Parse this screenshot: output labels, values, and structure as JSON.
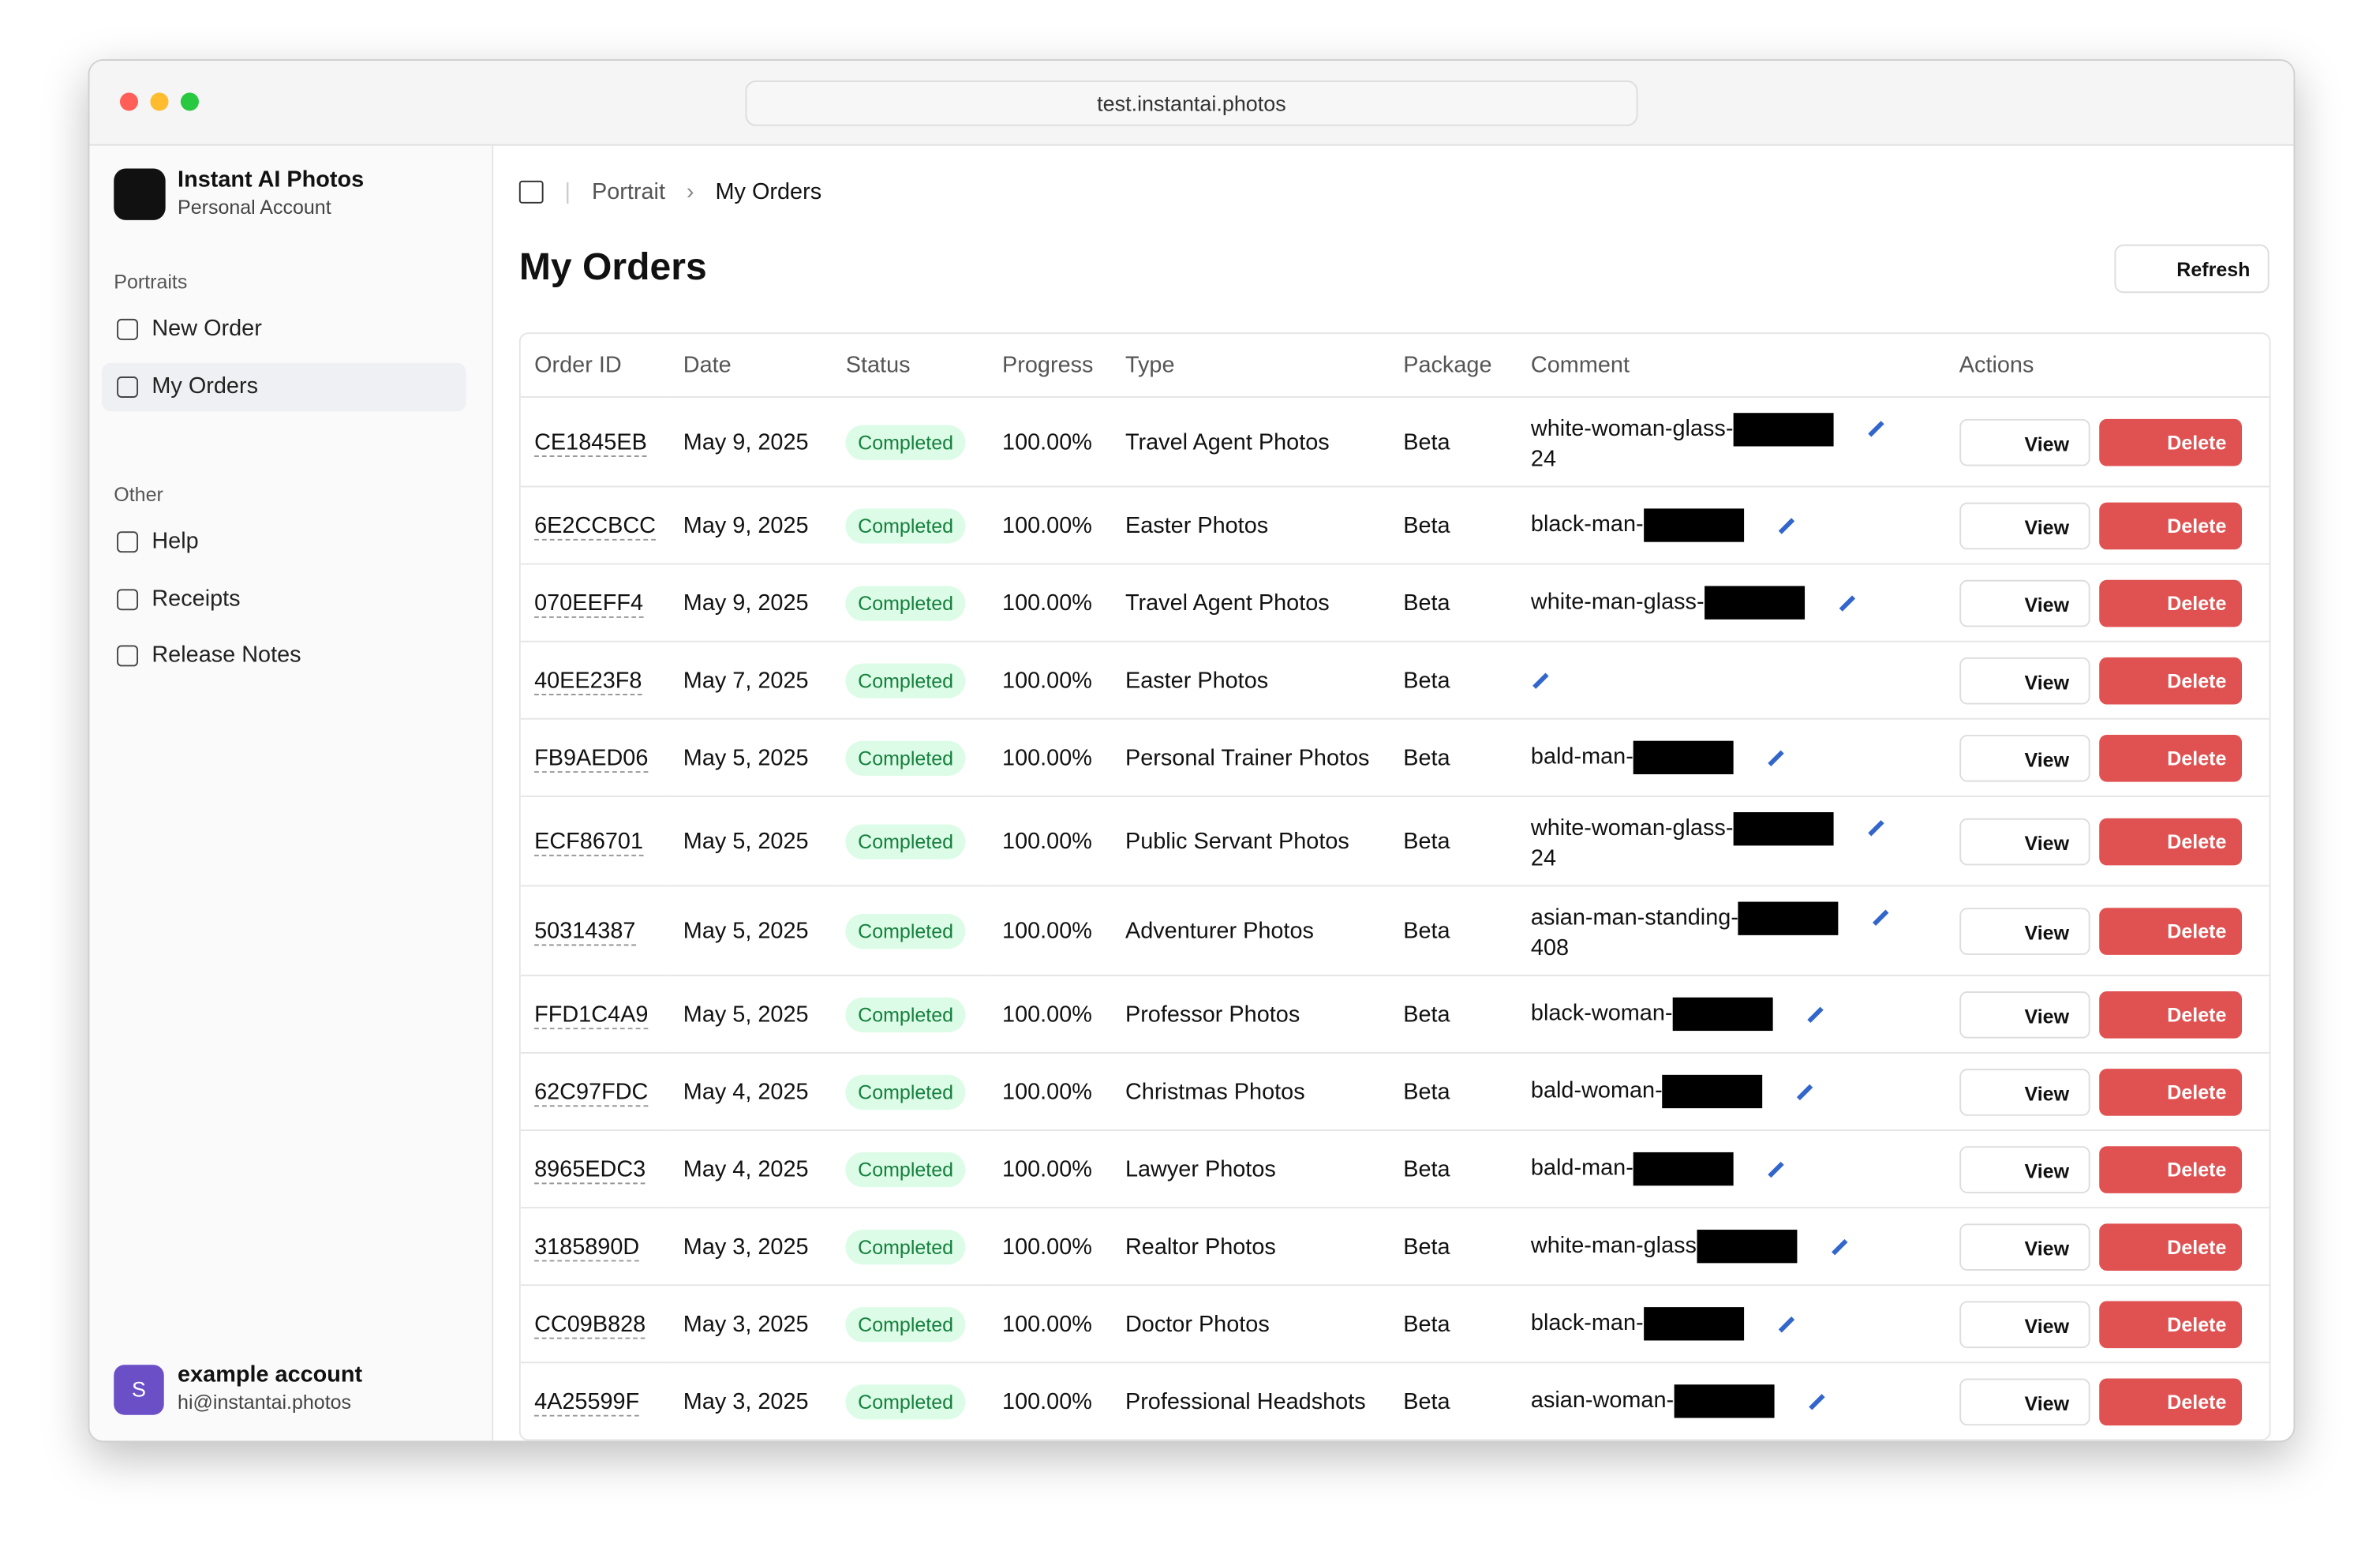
{
  "browser": {
    "url": "test.instantai.photos"
  },
  "sidebar": {
    "app_name": "Instant AI Photos",
    "account_type": "Personal Account",
    "sections": [
      {
        "title": "Portraits",
        "items": [
          "New Order",
          "My Orders"
        ]
      },
      {
        "title": "Other",
        "items": [
          "Help",
          "Receipts",
          "Release Notes"
        ]
      }
    ],
    "user": {
      "initial": "S",
      "name": "example account",
      "email": "hi@instantai.photos"
    }
  },
  "breadcrumb": [
    "Portrait",
    "My Orders"
  ],
  "page": {
    "title": "My Orders",
    "refresh": "Refresh"
  },
  "table": {
    "headers": [
      "Order ID",
      "Date",
      "Status",
      "Progress",
      "Type",
      "Package",
      "Comment",
      "Actions"
    ],
    "actions": [
      "View",
      "Delete"
    ],
    "rows": [
      {
        "id": "CE1845EB",
        "date": "May 9, 2025",
        "status": "Completed",
        "progress": "100.00%",
        "type": "Travel Agent Photos",
        "package": "Beta",
        "comment": "white-woman-glass-",
        "comment_suffix": "24"
      },
      {
        "id": "6E2CCBCC",
        "date": "May 9, 2025",
        "status": "Completed",
        "progress": "100.00%",
        "type": "Easter Photos",
        "package": "Beta",
        "comment": "black-man-"
      },
      {
        "id": "070EEFF4",
        "date": "May 9, 2025",
        "status": "Completed",
        "progress": "100.00%",
        "type": "Travel Agent Photos",
        "package": "Beta",
        "comment": "white-man-glass-"
      },
      {
        "id": "40EE23F8",
        "date": "May 7, 2025",
        "status": "Completed",
        "progress": "100.00%",
        "type": "Easter Photos",
        "package": "Beta"
      },
      {
        "id": "FB9AED06",
        "date": "May 5, 2025",
        "status": "Completed",
        "progress": "100.00%",
        "type": "Personal Trainer Photos",
        "package": "Beta",
        "comment": "bald-man-"
      },
      {
        "id": "ECF86701",
        "date": "May 5, 2025",
        "status": "Completed",
        "progress": "100.00%",
        "type": "Public Servant Photos",
        "package": "Beta",
        "comment": "white-woman-glass-",
        "comment_suffix": "24"
      },
      {
        "id": "50314387",
        "date": "May 5, 2025",
        "status": "Completed",
        "progress": "100.00%",
        "type": "Adventurer Photos",
        "package": "Beta",
        "comment": "asian-man-standing-",
        "comment_suffix": "408"
      },
      {
        "id": "FFD1C4A9",
        "date": "May 5, 2025",
        "status": "Completed",
        "progress": "100.00%",
        "type": "Professor Photos",
        "package": "Beta",
        "comment": "black-woman-"
      },
      {
        "id": "62C97FDC",
        "date": "May 4, 2025",
        "status": "Completed",
        "progress": "100.00%",
        "type": "Christmas Photos",
        "package": "Beta",
        "comment": "bald-woman-"
      },
      {
        "id": "8965EDC3",
        "date": "May 4, 2025",
        "status": "Completed",
        "progress": "100.00%",
        "type": "Lawyer Photos",
        "package": "Beta",
        "comment": "bald-man-"
      },
      {
        "id": "3185890D",
        "date": "May 3, 2025",
        "status": "Completed",
        "progress": "100.00%",
        "type": "Realtor Photos",
        "package": "Beta",
        "comment": "white-man-glass"
      },
      {
        "id": "CC09B828",
        "date": "May 3, 2025",
        "status": "Completed",
        "progress": "100.00%",
        "type": "Doctor Photos",
        "package": "Beta",
        "comment": "black-man-"
      },
      {
        "id": "4A25599F",
        "date": "May 3, 2025",
        "status": "Completed",
        "progress": "100.00%",
        "type": "Professional Headshots",
        "package": "Beta",
        "comment": "asian-woman-"
      }
    ]
  }
}
